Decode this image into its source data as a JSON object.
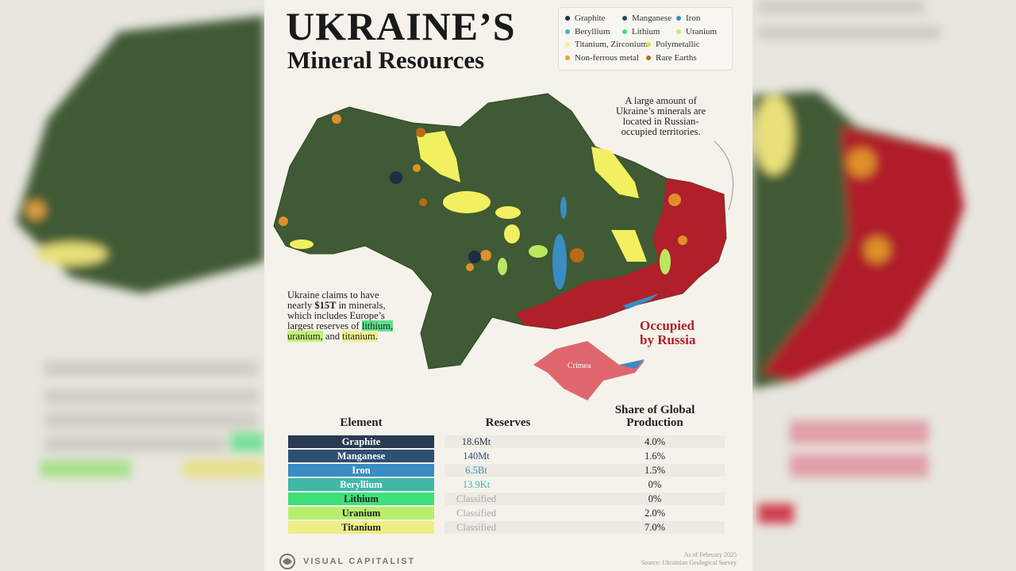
{
  "header": {
    "title": "UKRAINE’S",
    "subtitle": "Mineral Resources"
  },
  "legend": [
    {
      "name": "Graphite",
      "color": "#1f2d44"
    },
    {
      "name": "Manganese",
      "color": "#22456a"
    },
    {
      "name": "Iron",
      "color": "#3a8cc4"
    },
    {
      "name": "Beryllium",
      "color": "#3fb8a8"
    },
    {
      "name": "Lithium",
      "color": "#3ee07a"
    },
    {
      "name": "Uranium",
      "color": "#bdf07a"
    },
    {
      "name": "Titanium, Zirconium",
      "color": "#f2f08a"
    },
    {
      "name": "Polymetallic",
      "color": "#d8e84a"
    },
    {
      "name": "Non-ferrous metal",
      "color": "#f0a030"
    },
    {
      "name": "Rare Earths",
      "color": "#b86a18"
    }
  ],
  "annotation_right": [
    "A large amount of",
    "Ukraine’s minerals are",
    "located in Russian-",
    "occupied territories."
  ],
  "annotation_left": {
    "lines": [
      "Ukraine claims to have",
      "which includes Europe’s"
    ],
    "line2": [
      "nearly ",
      "$15T",
      " in minerals,"
    ],
    "line4": [
      "largest reserves of ",
      "lithium,"
    ],
    "line5": [
      "uranium,",
      " and ",
      "titanium."
    ]
  },
  "map_labels": {
    "occupied": [
      "Occupied",
      "by Russia"
    ],
    "crimea": "Crimea"
  },
  "table": {
    "headers": [
      "Element",
      "Reserves",
      "Share of Global",
      "Production"
    ],
    "rows": [
      {
        "element": "Graphite",
        "reserves": "18.6Mt",
        "share": "4.0%",
        "color": "#2a3a52",
        "text_color": "#2a3a52"
      },
      {
        "element": "Manganese",
        "reserves": "140Mt",
        "share": "1.6%",
        "color": "#2d4f74",
        "text_color": "#2d4f74"
      },
      {
        "element": "Iron",
        "reserves": "6.5Bt",
        "share": "1.5%",
        "color": "#3a8cc4",
        "text_color": "#3a8cc4"
      },
      {
        "element": "Beryllium",
        "reserves": "13.9Kt",
        "share": "0%",
        "color": "#3fb8a8",
        "text_color": "#3fb8a8"
      },
      {
        "element": "Lithium",
        "reserves": "Classified",
        "share": "0%",
        "color": "#3ee07a",
        "text_color": "#a8a8a8"
      },
      {
        "element": "Uranium",
        "reserves": "Classified",
        "share": "2.0%",
        "color": "#b8ee6e",
        "text_color": "#a8a8a8"
      },
      {
        "element": "Titanium",
        "reserves": "Classified",
        "share": "7.0%",
        "color": "#eeee86",
        "text_color": "#a8a8a8"
      }
    ]
  },
  "footer": {
    "brand": "VISUAL CAPITALIST",
    "date": "As of February 2025",
    "source": "Source: Ukrainian Geological Survey"
  }
}
